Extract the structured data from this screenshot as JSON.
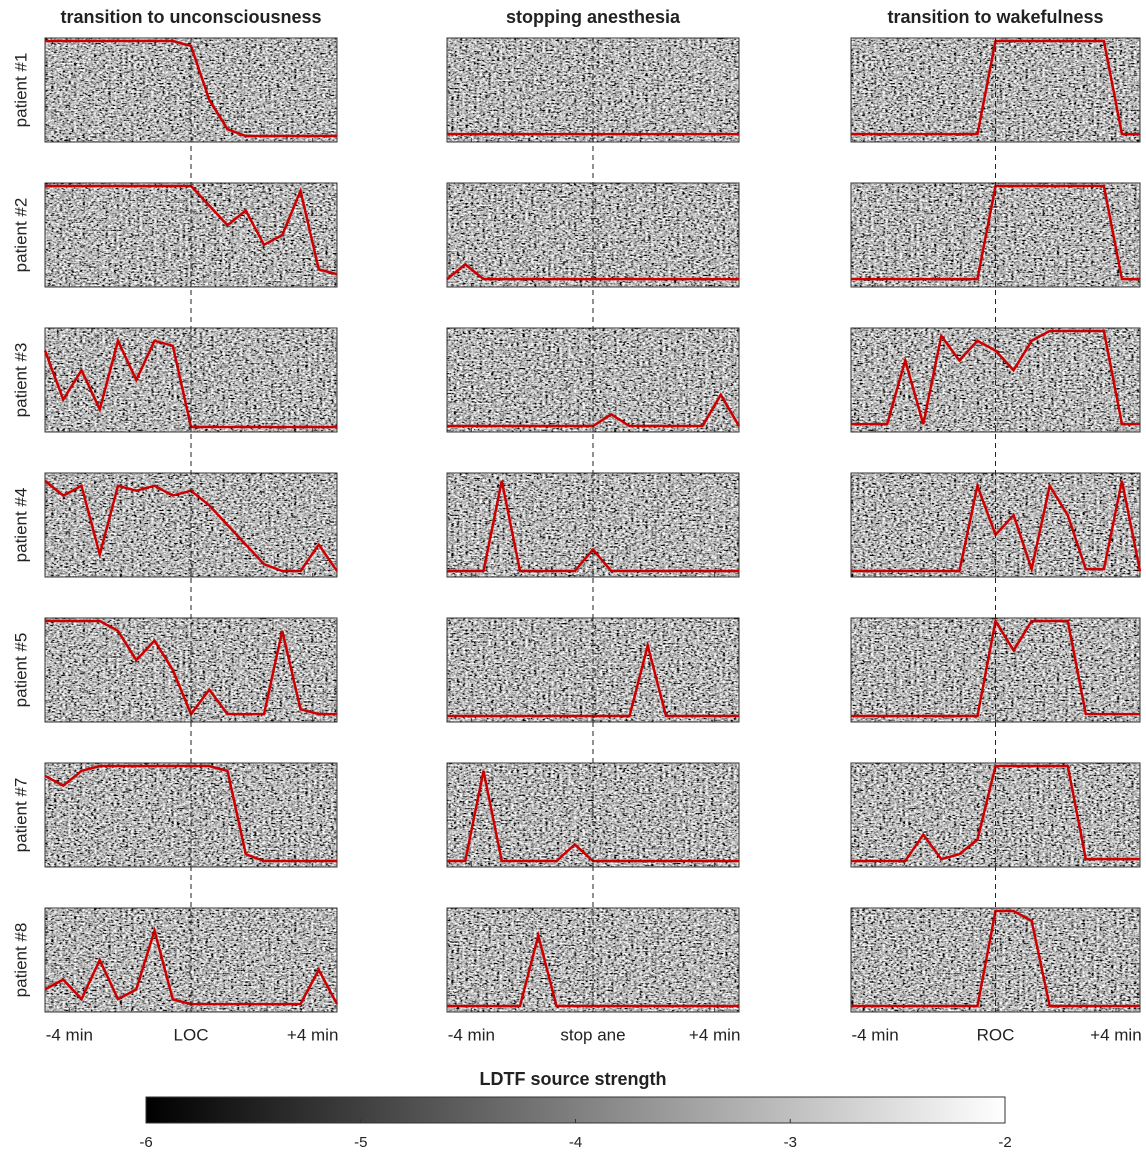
{
  "chart_data": {
    "type": "panel-grid",
    "rows": [
      "patient #1",
      "patient #2",
      "patient #3",
      "patient #4",
      "patient #5",
      "patient #7",
      "patient #8"
    ],
    "xlim": [
      -4.8,
      4.8
    ],
    "trace_ylim": [
      0,
      1
    ],
    "trace_color": "#cc0000",
    "trace_x": [
      -4.8,
      -4.2,
      -3.6,
      -3.0,
      -2.4,
      -1.8,
      -1.2,
      -0.6,
      0,
      0.6,
      1.2,
      1.8,
      2.4,
      3.0,
      3.6,
      4.2,
      4.8
    ],
    "columns": [
      {
        "title": "transition to unconsciousness",
        "xticks": [
          {
            "value": -4,
            "label": "-4 min"
          },
          {
            "value": 0,
            "label": "LOC"
          },
          {
            "value": 4,
            "label": "+4 min"
          }
        ],
        "traces": [
          [
            1,
            1,
            1,
            1,
            1,
            1,
            1,
            1,
            0.95,
            0.4,
            0.1,
            0.03,
            0.03,
            0.03,
            0.03,
            0.03,
            0.03
          ],
          [
            1,
            1,
            1,
            1,
            1,
            1,
            1,
            1,
            1,
            0.8,
            0.6,
            0.75,
            0.4,
            0.5,
            0.95,
            0.15,
            0.1
          ],
          [
            0.8,
            0.3,
            0.6,
            0.2,
            0.9,
            0.5,
            0.9,
            0.85,
            0.02,
            0.02,
            0.02,
            0.02,
            0.02,
            0.02,
            0.02,
            0.02,
            0.02
          ],
          [
            0.95,
            0.8,
            0.9,
            0.2,
            0.9,
            0.85,
            0.9,
            0.8,
            0.85,
            0.7,
            0.5,
            0.3,
            0.1,
            0.03,
            0.03,
            0.3,
            0.03
          ],
          [
            1,
            1,
            1,
            1,
            0.9,
            0.6,
            0.8,
            0.5,
            0.05,
            0.3,
            0.05,
            0.05,
            0.05,
            0.9,
            0.1,
            0.05,
            0.05
          ],
          [
            0.9,
            0.8,
            0.95,
            1,
            1,
            1,
            1,
            1,
            1,
            1,
            0.95,
            0.1,
            0.03,
            0.03,
            0.03,
            0.03,
            0.03
          ],
          [
            0.2,
            0.3,
            0.1,
            0.5,
            0.1,
            0.2,
            0.8,
            0.1,
            0.05,
            0.05,
            0.05,
            0.05,
            0.05,
            0.05,
            0.05,
            0.4,
            0.05
          ]
        ]
      },
      {
        "title": "stopping anesthesia",
        "xticks": [
          {
            "value": -4,
            "label": "-4 min"
          },
          {
            "value": 0,
            "label": "stop ane"
          },
          {
            "value": 4,
            "label": "+4 min"
          }
        ],
        "traces": [
          [
            0.05,
            0.05,
            0.05,
            0.05,
            0.05,
            0.05,
            0.05,
            0.05,
            0.05,
            0.05,
            0.05,
            0.05,
            0.05,
            0.05,
            0.05,
            0.05,
            0.05
          ],
          [
            0.05,
            0.2,
            0.05,
            0.05,
            0.05,
            0.05,
            0.05,
            0.05,
            0.05,
            0.05,
            0.05,
            0.05,
            0.05,
            0.05,
            0.05,
            0.05,
            0.05
          ],
          [
            0.03,
            0.03,
            0.03,
            0.03,
            0.03,
            0.03,
            0.03,
            0.03,
            0.03,
            0.15,
            0.03,
            0.03,
            0.03,
            0.03,
            0.03,
            0.35,
            0.03
          ],
          [
            0.03,
            0.03,
            0.03,
            0.95,
            0.03,
            0.03,
            0.03,
            0.03,
            0.25,
            0.03,
            0.03,
            0.03,
            0.03,
            0.03,
            0.03,
            0.03,
            0.03
          ],
          [
            0.03,
            0.03,
            0.03,
            0.03,
            0.03,
            0.03,
            0.03,
            0.03,
            0.03,
            0.03,
            0.03,
            0.75,
            0.03,
            0.03,
            0.03,
            0.03,
            0.03
          ],
          [
            0.03,
            0.03,
            0.95,
            0.03,
            0.03,
            0.03,
            0.03,
            0.2,
            0.03,
            0.03,
            0.03,
            0.03,
            0.03,
            0.03,
            0.03,
            0.03,
            0.03
          ],
          [
            0.03,
            0.03,
            0.03,
            0.03,
            0.03,
            0.75,
            0.03,
            0.03,
            0.03,
            0.03,
            0.03,
            0.03,
            0.03,
            0.03,
            0.03,
            0.03,
            0.03
          ]
        ]
      },
      {
        "title": "transition to wakefulness",
        "xticks": [
          {
            "value": -4,
            "label": "-4 min"
          },
          {
            "value": 0,
            "label": "ROC"
          },
          {
            "value": 4,
            "label": "+4 min"
          }
        ],
        "traces": [
          [
            0.05,
            0.05,
            0.05,
            0.05,
            0.05,
            0.05,
            0.05,
            0.05,
            1,
            1,
            1,
            1,
            1,
            1,
            1,
            0.05,
            0.05
          ],
          [
            0.05,
            0.05,
            0.05,
            0.05,
            0.05,
            0.05,
            0.05,
            0.05,
            1,
            1,
            1,
            1,
            1,
            1,
            1,
            0.05,
            0.05
          ],
          [
            0.05,
            0.05,
            0.05,
            0.7,
            0.05,
            0.95,
            0.7,
            0.9,
            0.8,
            0.6,
            0.9,
            1,
            1,
            1,
            1,
            0.05,
            0.05
          ],
          [
            0.03,
            0.03,
            0.03,
            0.03,
            0.03,
            0.03,
            0.03,
            0.9,
            0.4,
            0.6,
            0.05,
            0.9,
            0.6,
            0.05,
            0.05,
            0.95,
            0.03
          ],
          [
            0.03,
            0.03,
            0.03,
            0.03,
            0.03,
            0.03,
            0.03,
            0.03,
            1,
            0.7,
            1,
            1,
            1,
            0.05,
            0.05,
            0.05,
            0.05
          ],
          [
            0.03,
            0.03,
            0.03,
            0.03,
            0.3,
            0.05,
            0.1,
            0.25,
            1,
            1,
            1,
            1,
            1,
            0.05,
            0.05,
            0.05,
            0.05
          ],
          [
            0.03,
            0.03,
            0.03,
            0.03,
            0.03,
            0.03,
            0.03,
            0.03,
            1,
            1,
            0.9,
            0.03,
            0.03,
            0.03,
            0.03,
            0.03,
            0.03
          ]
        ]
      }
    ],
    "colorbar": {
      "label": "LDTF source strength",
      "xlim": [
        -6,
        -2
      ],
      "xticks": [
        -6,
        -5,
        -4,
        -3,
        -2
      ]
    }
  }
}
